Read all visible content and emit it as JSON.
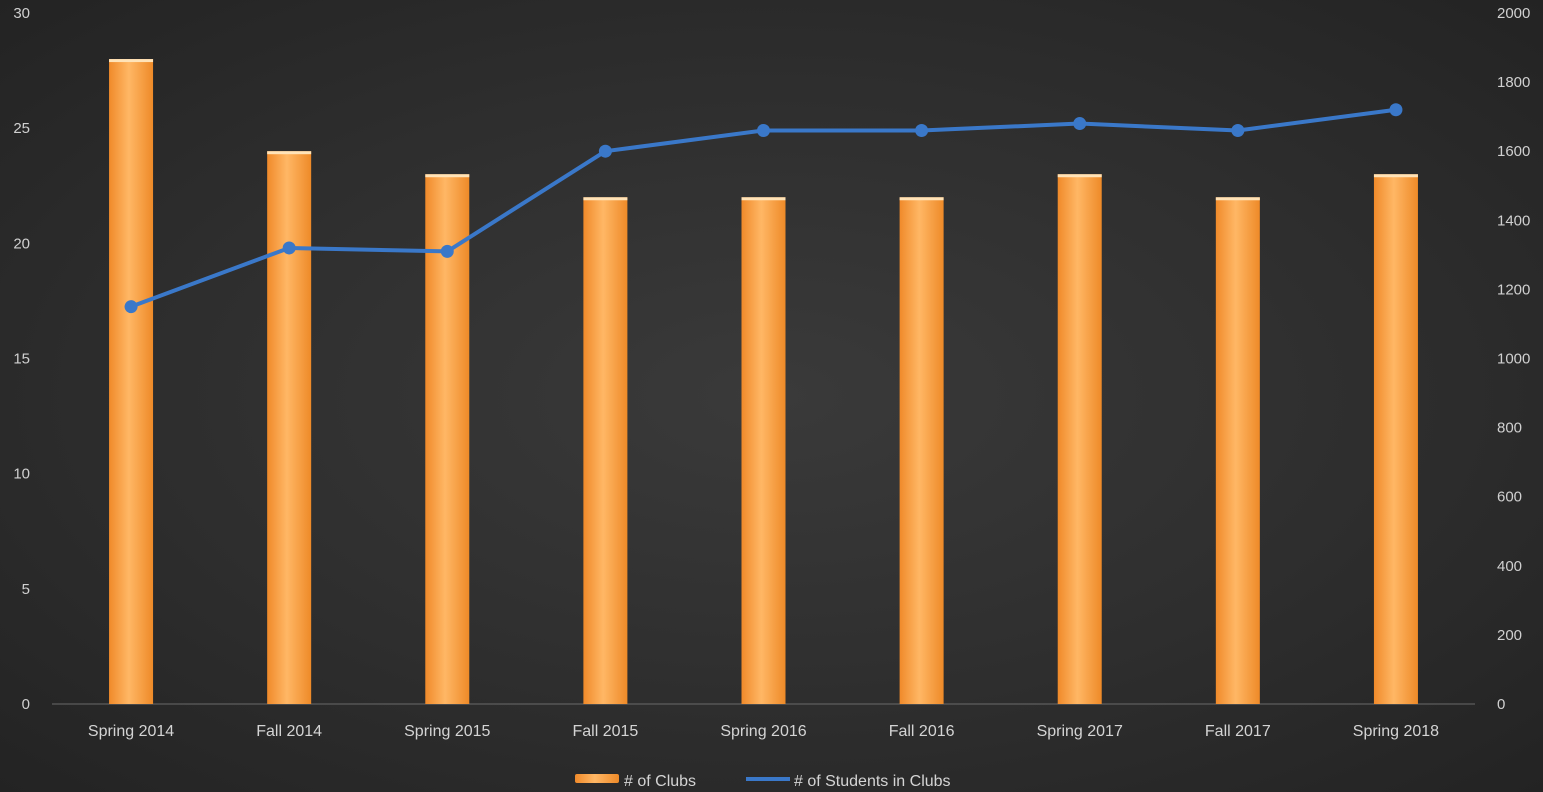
{
  "chart_data": {
    "type": "bar",
    "categories": [
      "Spring 2014",
      "Fall 2014",
      "Spring 2015",
      "Fall 2015",
      "Spring 2016",
      "Fall 2016",
      "Spring 2017",
      "Fall 2017",
      "Spring 2018"
    ],
    "series": [
      {
        "name": "# of Clubs",
        "type": "bar",
        "axis": "left",
        "color": "#f7a04a",
        "values": [
          28,
          24,
          23,
          22,
          22,
          22,
          23,
          22,
          23
        ]
      },
      {
        "name": "# of Students in Clubs",
        "type": "line",
        "axis": "right",
        "color": "#3a78c9",
        "values": [
          1150,
          1320,
          1310,
          1600,
          1660,
          1660,
          1680,
          1660,
          1720
        ]
      }
    ],
    "y_left": {
      "ylim": [
        0,
        30
      ],
      "ticks": [
        "0",
        "5",
        "10",
        "15",
        "20",
        "25",
        "30"
      ]
    },
    "y_right": {
      "ylim": [
        0,
        2000
      ],
      "ticks": [
        "0",
        "200",
        "400",
        "600",
        "800",
        "1000",
        "1200",
        "1400",
        "1600",
        "1800",
        "2000"
      ]
    },
    "title": "",
    "xlabel": "",
    "ylabel": "",
    "grid": false,
    "legend": {
      "position": "bottom",
      "items": [
        "# of Clubs",
        "# of Students in Clubs"
      ]
    }
  }
}
